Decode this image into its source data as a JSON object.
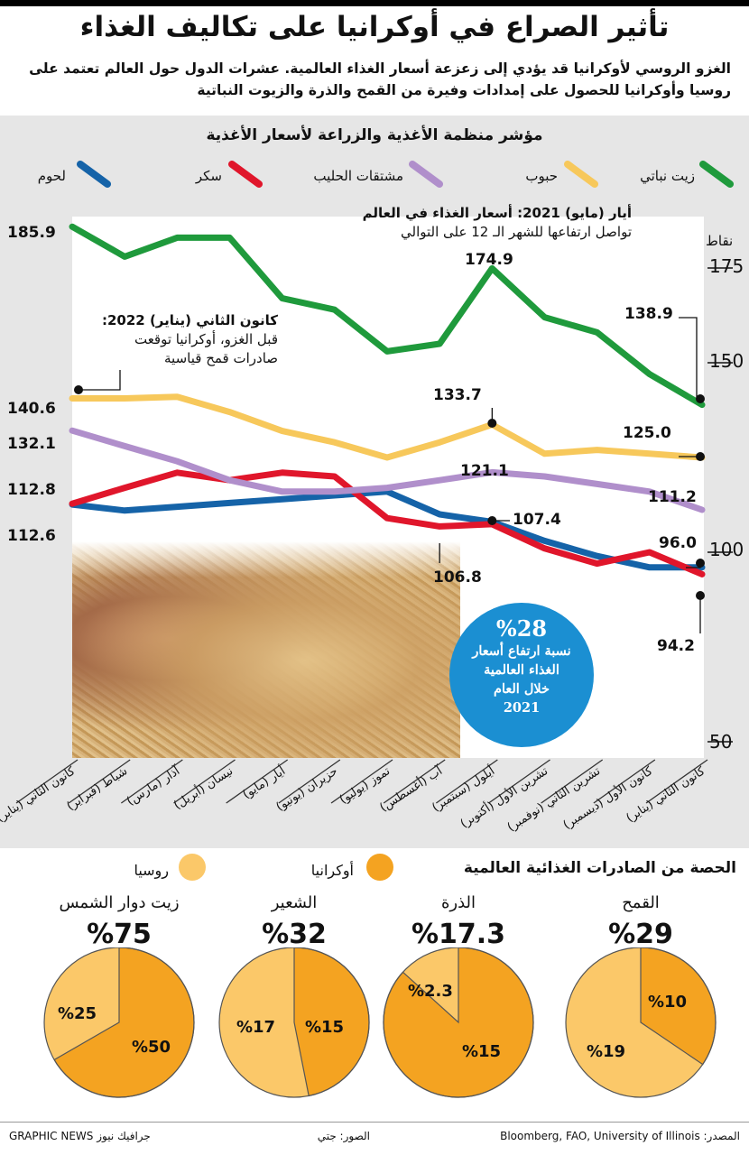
{
  "header": {
    "title": "تأثير الصراع في أوكرانيا على تكاليف الغذاء",
    "subtitle": "الغزو الروسي لأوكرانيا قد يؤدي إلى زعزعة أسعار الغذاء العالمية. عشرات الدول حول العالم تعتمد على روسيا وأوكرانيا للحصول على إمدادات وفيرة من القمح والذرة والزيوت النباتية"
  },
  "chart_data": [
    {
      "type": "line",
      "title": "مؤشر منظمة الأغذية والزراعة لأسعار الأغذية",
      "ylabel": "نقاط",
      "ylim": [
        50,
        190
      ],
      "yticks": [
        50,
        100,
        150,
        175
      ],
      "categories": [
        "كانون الثاني (يناير)",
        "شباط (فبراير)",
        "آذار (مارس)",
        "نيسان (أبريل)",
        "أيار (مايو)",
        "حزيران (يونيو)",
        "تموز (يوليو)",
        "آب (أغسطس)",
        "أيلول (سبتمبر)",
        "تشرين الأول (أكتوبر)",
        "تشرين الثاني (نوفمبر)",
        "كانون الأول (ديسمبر)",
        "كانون الثاني (يناير)"
      ],
      "series": [
        {
          "name": "زيت نباتي",
          "color": "#1f9a3c",
          "values": [
            185.9,
            178.0,
            183.0,
            183.0,
            167.0,
            164.0,
            153.0,
            155.0,
            174.9,
            162.0,
            158.0,
            147.0,
            138.9
          ]
        },
        {
          "name": "حبوب",
          "color": "#f7c85b",
          "values": [
            140.6,
            140.6,
            141.0,
            137.0,
            132.0,
            129.0,
            125.0,
            129.0,
            133.7,
            126.0,
            127.0,
            126.0,
            125.0
          ]
        },
        {
          "name": "مشتقات الحليب",
          "color": "#b08fcb",
          "values": [
            132.1,
            128.0,
            124.0,
            119.0,
            116.0,
            116.0,
            117.0,
            119.0,
            121.1,
            120.0,
            118.0,
            116.0,
            111.2
          ]
        },
        {
          "name": "سكر",
          "color": "#e0162b",
          "values": [
            112.8,
            117.0,
            121.0,
            119.0,
            121.0,
            120.0,
            109.0,
            106.8,
            107.4,
            101.0,
            97.0,
            100.0,
            94.2
          ]
        },
        {
          "name": "لحوم",
          "color": "#1563a8",
          "values": [
            112.6,
            111.0,
            112.0,
            113.0,
            114.0,
            115.0,
            116.0,
            110.0,
            108.0,
            103.0,
            99.0,
            96.0,
            96.0
          ]
        }
      ],
      "value_labels": {
        "veg_start": "185.9",
        "veg_may": "174.9",
        "veg_end": "138.9",
        "cer_start": "140.6",
        "cer_may": "133.7",
        "cer_end": "125.0",
        "dai_start": "132.1",
        "dai_may": "121.1",
        "dai_end": "111.2",
        "sug_start": "112.8",
        "sug_aug": "106.8",
        "sug_sep": "107.4",
        "sug_end": "94.2",
        "meat_start": "112.6",
        "meat_end": "96.0"
      }
    },
    {
      "type": "pie",
      "title": "الحصة من الصادرات الغذائية العالمية",
      "legend": [
        {
          "name": "روسيا",
          "color": "#fbc869"
        },
        {
          "name": "أوكرانيا",
          "color": "#f4a321"
        }
      ],
      "pies": [
        {
          "name": "القمح",
          "total": "%29",
          "russia": 19,
          "ukraine": 10,
          "russia_label": "%19",
          "ukraine_label": "%10"
        },
        {
          "name": "الذرة",
          "total": "%17.3",
          "russia": 2.3,
          "ukraine": 15,
          "russia_label": "%2.3",
          "ukraine_label": "%15"
        },
        {
          "name": "الشعير",
          "total": "%32",
          "russia": 17,
          "ukraine": 15,
          "russia_label": "%17",
          "ukraine_label": "%15"
        },
        {
          "name": "زيت دوار الشمس",
          "total": "%75",
          "russia": 25,
          "ukraine": 50,
          "russia_label": "%25",
          "ukraine_label": "%50"
        }
      ]
    }
  ],
  "annotations": {
    "may": {
      "head": "أيار (مايو) 2021: أسعار الغذاء في العالم",
      "body": "تواصل ارتفاعها للشهر الـ 12 على التوالي"
    },
    "jan": {
      "head": "كانون الثاني (يناير) 2022:",
      "body1": "قبل الغزو، أوكرانيا توقعت",
      "body2": "صادرات قمح قياسية"
    }
  },
  "circle": {
    "pct": "%28",
    "line1": "نسبة ارتفاع أسعار",
    "line2": "الغذاء العالمية",
    "line3": "خلال العام",
    "line4": "2021"
  },
  "footer": {
    "source": "المصدر: Bloomberg, FAO, University of Illinois",
    "photo": "الصور: جتي",
    "brand": "GRAPHIC NEWS جرافيك نيوز"
  }
}
